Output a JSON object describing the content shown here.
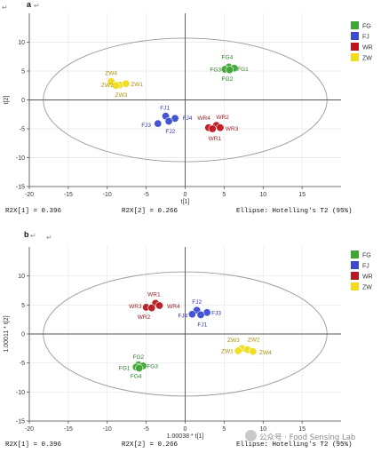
{
  "panels": [
    {
      "tag": "a",
      "footer_left": "R2X[1] = 0.396",
      "footer_mid": "R2X[2] = 0.266",
      "footer_right": "Ellipse: Hotelling's T2 (95%)"
    },
    {
      "tag": "b",
      "footer_left": "R2X[1] = 0.396",
      "footer_mid": "R2X[2] = 0.266",
      "footer_right": "Ellipse: Hotelling's T2 (95%)"
    }
  ],
  "paragraph_mark": "↵",
  "watermark": {
    "text": "公众号 · Food Sensing Lab"
  },
  "chart_data": [
    {
      "type": "scatter",
      "title": "",
      "xlabel": "t[1]",
      "ylabel": "t[2]",
      "xlim": [
        -20,
        20
      ],
      "ylim": [
        -15,
        15
      ],
      "xticks": [
        -20,
        -15,
        -10,
        -5,
        0,
        5,
        10,
        15
      ],
      "yticks": [
        -15,
        -10,
        -5,
        0,
        5,
        10
      ],
      "grid": true,
      "legend": "right",
      "ellipse": {
        "center": [
          0,
          0
        ],
        "rx": 18.2,
        "ry": 10.7
      },
      "series": [
        {
          "name": "FG",
          "color": "#3fa535",
          "label_color": "#2a7a25",
          "points": [
            {
              "label": "FG4",
              "x": 5.6,
              "y": 5.7,
              "lx": 5.4,
              "ly": 7.5
            },
            {
              "label": "FG3",
              "x": 5.1,
              "y": 5.3,
              "lx": 3.9,
              "ly": 5.3
            },
            {
              "label": "FG1",
              "x": 6.3,
              "y": 5.5,
              "lx": 7.4,
              "ly": 5.4
            },
            {
              "label": "FG2",
              "x": 5.7,
              "y": 5.2,
              "lx": 5.4,
              "ly": 3.7
            }
          ]
        },
        {
          "name": "FJ",
          "color": "#3b4bd1",
          "label_color": "#2d3aa8",
          "points": [
            {
              "label": "FJ1",
              "x": -2.5,
              "y": -2.8,
              "lx": -2.6,
              "ly": -1.3
            },
            {
              "label": "FJ3",
              "x": -3.5,
              "y": -4.1,
              "lx": -5.0,
              "ly": -4.3
            },
            {
              "label": "FJ4",
              "x": -1.3,
              "y": -3.2,
              "lx": 0.3,
              "ly": -3.1
            },
            {
              "label": "FJ2",
              "x": -2.1,
              "y": -3.7,
              "lx": -1.9,
              "ly": -5.4
            }
          ]
        },
        {
          "name": "WR",
          "color": "#c0141c",
          "label_color": "#a81a20",
          "points": [
            {
              "label": "WR4",
              "x": 3.0,
              "y": -4.8,
              "lx": 2.4,
              "ly": -3.1
            },
            {
              "label": "WR2",
              "x": 4.0,
              "y": -4.4,
              "lx": 4.8,
              "ly": -2.9
            },
            {
              "label": "WR3",
              "x": 4.5,
              "y": -4.8,
              "lx": 6.0,
              "ly": -4.9
            },
            {
              "label": "WR1",
              "x": 3.5,
              "y": -5.0,
              "lx": 3.8,
              "ly": -6.6
            }
          ]
        },
        {
          "name": "ZW",
          "color": "#f0dc1a",
          "label_color": "#a8900a",
          "points": [
            {
              "label": "ZW4",
              "x": -9.5,
              "y": 3.2,
              "lx": -9.5,
              "ly": 4.7
            },
            {
              "label": "ZW2",
              "x": -8.4,
              "y": 2.6,
              "lx": -10.0,
              "ly": 2.6
            },
            {
              "label": "ZW1",
              "x": -7.6,
              "y": 2.8,
              "lx": -6.2,
              "ly": 2.8
            },
            {
              "label": "ZW3",
              "x": -8.9,
              "y": 2.5,
              "lx": -8.2,
              "ly": 0.9
            }
          ]
        }
      ]
    },
    {
      "type": "scatter",
      "title": "",
      "xlabel": "1.00038 * t[1]",
      "ylabel": "1.00011 * t[2]",
      "xlim": [
        -20,
        20
      ],
      "ylim": [
        -15,
        15
      ],
      "xticks": [
        -20,
        -15,
        -10,
        -5,
        0,
        5,
        10,
        15
      ],
      "yticks": [
        -15,
        -10,
        -5,
        0,
        5,
        10
      ],
      "grid": true,
      "legend": "right",
      "ellipse": {
        "center": [
          0,
          0
        ],
        "rx": 18.2,
        "ry": 10.7
      },
      "series": [
        {
          "name": "FG",
          "color": "#3fa535",
          "label_color": "#2a7a25",
          "points": [
            {
              "label": "FG2",
              "x": -6.0,
              "y": -5.3,
              "lx": -6.0,
              "ly": -3.9
            },
            {
              "label": "FG1",
              "x": -6.3,
              "y": -5.7,
              "lx": -7.8,
              "ly": -5.8
            },
            {
              "label": "FG3",
              "x": -5.4,
              "y": -5.5,
              "lx": -4.2,
              "ly": -5.5
            },
            {
              "label": "FG4",
              "x": -5.9,
              "y": -5.9,
              "lx": -6.3,
              "ly": -7.2
            }
          ]
        },
        {
          "name": "FJ",
          "color": "#3b4bd1",
          "label_color": "#2d3aa8",
          "points": [
            {
              "label": "FJ2",
              "x": 1.5,
              "y": 4.1,
              "lx": 1.5,
              "ly": 5.6
            },
            {
              "label": "FJ4",
              "x": 0.9,
              "y": 3.4,
              "lx": -0.3,
              "ly": 3.2
            },
            {
              "label": "FJ3",
              "x": 2.8,
              "y": 3.7,
              "lx": 4.0,
              "ly": 3.7
            },
            {
              "label": "FJ1",
              "x": 2.0,
              "y": 3.3,
              "lx": 2.2,
              "ly": 1.7
            }
          ]
        },
        {
          "name": "WR",
          "color": "#b41820",
          "label_color": "#951319",
          "points": [
            {
              "label": "WR1",
              "x": -3.8,
              "y": 5.3,
              "lx": -4.0,
              "ly": 6.9
            },
            {
              "label": "WR3",
              "x": -5.0,
              "y": 4.6,
              "lx": -6.4,
              "ly": 4.8
            },
            {
              "label": "WR4",
              "x": -3.3,
              "y": 4.9,
              "lx": -1.5,
              "ly": 4.8
            },
            {
              "label": "WR2",
              "x": -4.3,
              "y": 4.5,
              "lx": -5.3,
              "ly": 3.0
            }
          ]
        },
        {
          "name": "ZW",
          "color": "#f0dc1a",
          "label_color": "#a8900a",
          "points": [
            {
              "label": "ZW3",
              "x": 7.3,
              "y": -2.5,
              "lx": 6.2,
              "ly": -1.0
            },
            {
              "label": "ZW2",
              "x": 8.0,
              "y": -2.7,
              "lx": 8.8,
              "ly": -0.9
            },
            {
              "label": "ZW1",
              "x": 6.8,
              "y": -2.9,
              "lx": 5.4,
              "ly": -2.9
            },
            {
              "label": "ZW4",
              "x": 8.7,
              "y": -3.0,
              "lx": 10.3,
              "ly": -3.1
            }
          ]
        }
      ]
    }
  ]
}
